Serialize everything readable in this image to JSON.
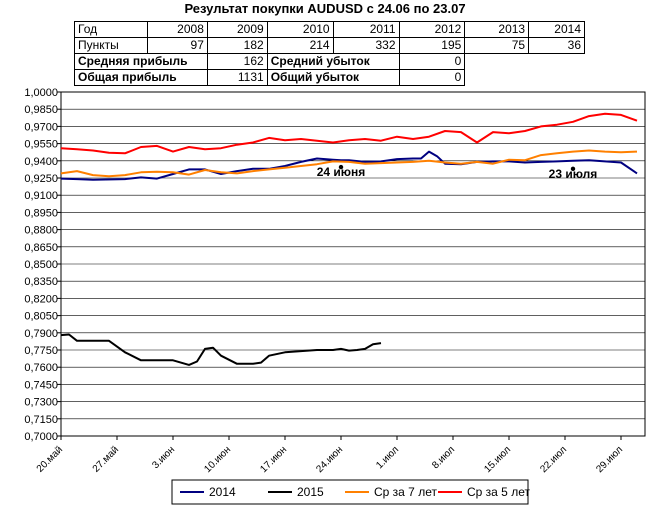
{
  "chart_data": {
    "type": "line",
    "title": "Результат покупки AUDUSD с 24.06 по 23.07",
    "ylim": [
      0.7,
      1.0
    ],
    "y_ticks": [
      "0,7000",
      "0,7150",
      "0,7300",
      "0,7450",
      "0,7600",
      "0,7750",
      "0,7900",
      "0,8050",
      "0,8200",
      "0,8350",
      "0,8500",
      "0,8650",
      "0,8800",
      "0,8950",
      "0,9100",
      "0,9250",
      "0,9400",
      "0,9550",
      "0,9700",
      "0,9850",
      "1,0000"
    ],
    "x_ticks": [
      "20.май",
      "27.май",
      "3.июн",
      "10.июн",
      "17.июн",
      "24.июн",
      "1.июл",
      "8.июл",
      "15.июл",
      "22.июл",
      "29.июл"
    ],
    "x_range_days": [
      0,
      73
    ],
    "grid": true,
    "legend_position": "bottom",
    "annotations": [
      {
        "label": "24 июня",
        "x": 35,
        "y": 0.9345
      },
      {
        "label": "23 июля",
        "x": 64,
        "y": 0.933
      }
    ],
    "series": [
      {
        "name": "2014",
        "color": "#000080",
        "x": [
          0,
          2,
          4,
          8,
          10,
          12,
          14,
          16,
          18,
          20,
          22,
          24,
          26,
          28,
          30,
          32,
          34,
          35,
          36,
          38,
          40,
          42,
          44,
          45,
          46,
          47,
          48,
          50,
          52,
          54,
          56,
          58,
          60,
          62,
          64,
          66,
          68,
          70,
          72
        ],
        "y": [
          0.9245,
          0.924,
          0.9235,
          0.924,
          0.9255,
          0.9245,
          0.9285,
          0.9325,
          0.9325,
          0.9285,
          0.931,
          0.933,
          0.933,
          0.9355,
          0.939,
          0.942,
          0.941,
          0.9405,
          0.9405,
          0.939,
          0.9395,
          0.9415,
          0.942,
          0.942,
          0.948,
          0.944,
          0.9375,
          0.937,
          0.939,
          0.9395,
          0.9395,
          0.9385,
          0.939,
          0.9395,
          0.94,
          0.9405,
          0.9395,
          0.9385,
          0.929
        ]
      },
      {
        "name": "2015",
        "color": "#000000",
        "x": [
          0,
          1,
          2,
          4,
          6,
          8,
          10,
          12,
          14,
          16,
          17,
          18,
          19,
          20,
          22,
          24,
          25,
          26,
          28,
          30,
          32,
          34,
          35,
          36,
          37,
          38,
          39,
          40
        ],
        "y": [
          0.788,
          0.7885,
          0.783,
          0.783,
          0.783,
          0.773,
          0.766,
          0.766,
          0.766,
          0.762,
          0.765,
          0.776,
          0.777,
          0.77,
          0.763,
          0.763,
          0.764,
          0.77,
          0.773,
          0.774,
          0.775,
          0.775,
          0.776,
          0.7745,
          0.775,
          0.776,
          0.78,
          0.781
        ]
      },
      {
        "name": "Ср за 7 лет",
        "color": "#ff8000",
        "x": [
          0,
          2,
          4,
          6,
          8,
          10,
          12,
          14,
          16,
          18,
          20,
          22,
          24,
          26,
          28,
          30,
          32,
          34,
          36,
          38,
          40,
          42,
          44,
          46,
          48,
          50,
          52,
          54,
          56,
          58,
          60,
          62,
          64,
          66,
          68,
          70,
          72
        ],
        "y": [
          0.929,
          0.931,
          0.9275,
          0.9265,
          0.9275,
          0.93,
          0.9305,
          0.93,
          0.928,
          0.932,
          0.93,
          0.929,
          0.931,
          0.9325,
          0.934,
          0.9355,
          0.937,
          0.9395,
          0.939,
          0.9375,
          0.938,
          0.9385,
          0.939,
          0.94,
          0.9385,
          0.9375,
          0.939,
          0.9375,
          0.941,
          0.9405,
          0.945,
          0.9465,
          0.948,
          0.949,
          0.948,
          0.9475,
          0.948
        ]
      },
      {
        "name": "Ср за 5 лет",
        "color": "#ff0000",
        "x": [
          0,
          2,
          4,
          6,
          8,
          10,
          12,
          14,
          16,
          18,
          20,
          22,
          24,
          26,
          28,
          30,
          32,
          34,
          36,
          38,
          40,
          42,
          44,
          46,
          48,
          50,
          52,
          54,
          56,
          58,
          60,
          62,
          64,
          66,
          68,
          70,
          72
        ],
        "y": [
          0.951,
          0.95,
          0.949,
          0.947,
          0.9465,
          0.952,
          0.953,
          0.948,
          0.952,
          0.95,
          0.951,
          0.954,
          0.956,
          0.96,
          0.958,
          0.959,
          0.9575,
          0.956,
          0.958,
          0.959,
          0.9575,
          0.961,
          0.959,
          0.961,
          0.966,
          0.965,
          0.956,
          0.965,
          0.964,
          0.966,
          0.97,
          0.9715,
          0.974,
          0.979,
          0.981,
          0.98,
          0.975
        ]
      }
    ]
  },
  "table": {
    "rows": [
      [
        "Год",
        "2008",
        "2009",
        "2010",
        "2011",
        "2012",
        "2013",
        "2014"
      ],
      [
        "Пункты",
        "97",
        "182",
        "214",
        "332",
        "195",
        "75",
        "36"
      ]
    ],
    "summary": [
      {
        "label": "Средняя прибыль",
        "value": "162",
        "label2": "Средний убыток",
        "value2": "0"
      },
      {
        "label": "Общая прибыль",
        "value": "1131",
        "label2": "Общий убыток",
        "value2": "0"
      }
    ]
  }
}
